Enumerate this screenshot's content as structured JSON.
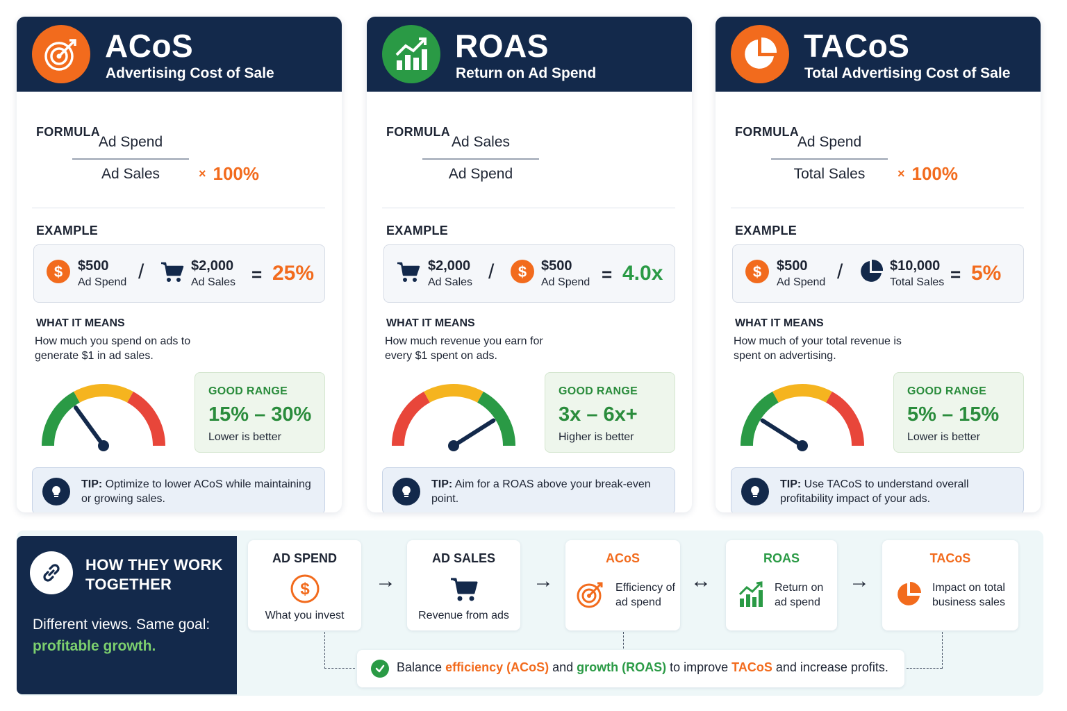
{
  "colors": {
    "navy": "#13294b",
    "orange": "#f26b1d",
    "green": "#2a9a45",
    "red": "#e8463a",
    "yellow": "#f5b41f"
  },
  "cards": [
    {
      "title": "ACoS",
      "subtitle": "Advertising Cost of Sale",
      "icon": "target-icon",
      "formula_label": "FORMULA",
      "formula_num": "Ad Spend",
      "formula_den": "Ad Sales",
      "formula_mult": "100%",
      "example_label": "EXAMPLE",
      "ex1_value": "$500",
      "ex1_label": "Ad Spend",
      "ex1_icon": "dollar-icon",
      "slash": "/",
      "ex2_value": "$2,000",
      "ex2_label": "Ad Sales",
      "ex2_icon": "cart-icon",
      "eq": "=",
      "result": "25%",
      "means_label": "WHAT IT MEANS",
      "means_text": "How much you spend on ads to generate $1 in ad sales.",
      "range_label": "GOOD RANGE",
      "range_value": "15% – 30%",
      "range_note": "Lower is better",
      "tip_prefix": "TIP:",
      "tip_text": "Optimize to lower ACoS while maintaining or growing sales."
    },
    {
      "title": "ROAS",
      "subtitle": "Return on Ad Spend",
      "icon": "chart-growth-icon",
      "formula_label": "FORMULA",
      "formula_num": "Ad Sales",
      "formula_den": "Ad Spend",
      "example_label": "EXAMPLE",
      "ex1_value": "$2,000",
      "ex1_label": "Ad Sales",
      "ex1_icon": "cart-icon",
      "slash": "/",
      "ex2_value": "$500",
      "ex2_label": "Ad Spend",
      "ex2_icon": "dollar-icon",
      "eq": "=",
      "result": "4.0x",
      "means_label": "WHAT IT MEANS",
      "means_text": "How much revenue you earn for every $1 spent on ads.",
      "range_label": "GOOD RANGE",
      "range_value": "3x – 6x+",
      "range_note": "Higher is better",
      "tip_prefix": "TIP:",
      "tip_text": "Aim for a ROAS above your break-even point."
    },
    {
      "title": "TACoS",
      "subtitle": "Total Advertising Cost of Sale",
      "icon": "pie-icon",
      "formula_label": "FORMULA",
      "formula_num": "Ad Spend",
      "formula_den": "Total Sales",
      "formula_mult": "100%",
      "example_label": "EXAMPLE",
      "ex1_value": "$500",
      "ex1_label": "Ad Spend",
      "ex1_icon": "dollar-icon",
      "slash": "/",
      "ex2_value": "$10,000",
      "ex2_label": "Total Sales",
      "ex2_icon": "pie-icon",
      "eq": "=",
      "result": "5%",
      "means_label": "WHAT IT MEANS",
      "means_text": "How much of your total revenue is spent on advertising.",
      "range_label": "GOOD RANGE",
      "range_value": "5% – 15%",
      "range_note": "Lower is better",
      "tip_prefix": "TIP:",
      "tip_text": "Use TACoS to understand overall profitability impact of your ads."
    }
  ],
  "gauges": [
    {
      "level": 0.3
    },
    {
      "level": 0.82
    },
    {
      "level": 0.18
    }
  ],
  "bottom": {
    "title": "HOW THEY WORK TOGETHER",
    "text": "Different views. Same goal:",
    "highlight": "profitable growth.",
    "flow": [
      {
        "title": "AD SPEND",
        "caption": "What you invest",
        "icon": "dollar-icon"
      },
      {
        "title": "AD SALES",
        "caption": "Revenue from ads",
        "icon": "cart-icon"
      },
      {
        "title": "ACoS",
        "caption": "Efficiency of ad spend",
        "icon": "target-icon"
      },
      {
        "title": "ROAS",
        "caption": "Return on ad spend",
        "icon": "chart-growth-icon"
      },
      {
        "title": "TACoS",
        "caption": "Impact on total business sales",
        "icon": "pie-icon"
      }
    ],
    "arrows": [
      "→",
      "→",
      "↔",
      "→"
    ],
    "balance": {
      "p1": "Balance ",
      "p2": "efficiency (ACoS)",
      "p3": " and ",
      "p4": "growth (ROAS)",
      "p5": " to improve ",
      "p6": "TACoS",
      "p7": " and increase profits."
    }
  }
}
